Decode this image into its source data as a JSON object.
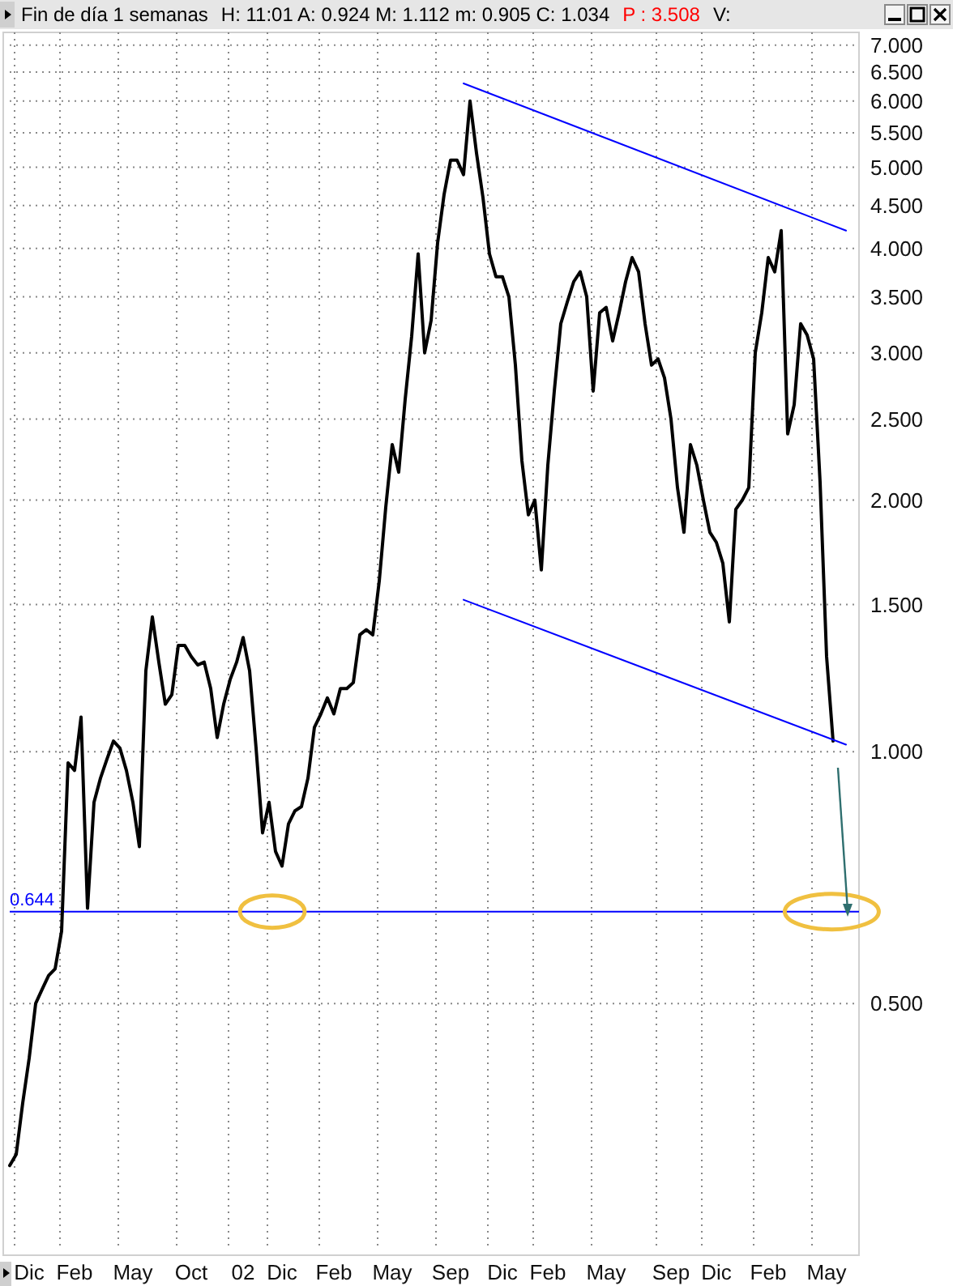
{
  "chart_data": {
    "type": "line",
    "title": "Fin de día 1 semanas",
    "annotations": [
      "H: 11:01  A: 0.924  M: 1.112  m: 0.905  C: 1.034",
      "P : 3.508",
      "V:"
    ],
    "categories": [
      null,
      null,
      null,
      "Dic",
      null,
      null,
      null,
      null,
      null,
      null,
      "Feb",
      null,
      null,
      null,
      null,
      null,
      null,
      null,
      null,
      "May",
      null,
      null,
      null,
      null,
      null,
      null,
      null,
      null,
      "Oct",
      null,
      null,
      null,
      null,
      null,
      null,
      null,
      "02",
      null,
      null,
      null,
      null,
      null,
      "Dic",
      null,
      null,
      null,
      null,
      null,
      null,
      null,
      "Feb",
      null,
      null,
      null,
      null,
      null,
      null,
      null,
      null,
      "May",
      null,
      null,
      null,
      null,
      null,
      null,
      null,
      null,
      "Sep",
      null,
      null,
      null,
      null,
      null,
      null,
      null,
      "Dic",
      null,
      null,
      null,
      null,
      null,
      null,
      "Feb",
      null,
      null,
      null,
      null,
      null,
      null,
      null,
      null,
      "May",
      null,
      null,
      null,
      null,
      null,
      null,
      null,
      null,
      null,
      "Sep",
      null,
      null,
      null,
      null,
      null,
      null,
      "Dic",
      null,
      null,
      null,
      null,
      null,
      null,
      null,
      "Feb",
      null,
      null,
      null,
      null,
      null,
      null,
      null,
      null,
      "May",
      null,
      null,
      null
    ],
    "series": [
      {
        "color": "#000000",
        "values": [
          0.32,
          0.33,
          0.38,
          0.43,
          0.5,
          0.52,
          0.54,
          0.55,
          0.61,
          0.97,
          0.95,
          1.1,
          0.65,
          0.87,
          0.93,
          0.98,
          1.03,
          1.01,
          0.95,
          0.87,
          0.77,
          1.25,
          1.45,
          1.28,
          1.14,
          1.17,
          1.34,
          1.34,
          1.3,
          1.27,
          1.28,
          1.19,
          1.04,
          1.14,
          1.22,
          1.28,
          1.37,
          1.25,
          1.01,
          0.8,
          0.87,
          0.76,
          0.73,
          0.82,
          0.85,
          0.86,
          0.93,
          1.07,
          1.11,
          1.16,
          1.11,
          1.19,
          1.19,
          1.21,
          1.38,
          1.4,
          1.38,
          1.6,
          1.96,
          2.33,
          2.16,
          2.64,
          3.14,
          3.94,
          3.0,
          3.28,
          4.06,
          4.64,
          5.1,
          5.1,
          4.9,
          6.0,
          5.2,
          4.6,
          3.94,
          3.7,
          3.7,
          3.5,
          2.9,
          2.23,
          1.92,
          2.0,
          1.65,
          2.2,
          2.7,
          3.25,
          3.45,
          3.65,
          3.75,
          3.5,
          2.7,
          3.35,
          3.4,
          3.1,
          3.35,
          3.65,
          3.9,
          3.75,
          3.25,
          2.9,
          2.95,
          2.8,
          2.5,
          2.07,
          1.83,
          2.33,
          2.2,
          2.0,
          1.83,
          1.78,
          1.68,
          1.43,
          1.95,
          2.0,
          2.07,
          3.0,
          3.35,
          3.9,
          3.75,
          4.2,
          2.4,
          2.6,
          3.25,
          3.15,
          2.95,
          2.1,
          1.3,
          1.03,
          null,
          null
        ]
      },
      {
        "color": "#0000ff",
        "values": [
          null,
          null,
          null,
          null,
          null,
          null,
          null,
          null,
          null,
          null,
          null,
          null,
          null,
          null,
          null,
          null,
          null,
          null,
          null,
          null,
          null,
          null,
          null,
          null,
          null,
          null,
          null,
          null,
          null,
          null,
          null,
          null,
          null,
          null,
          null,
          null,
          null,
          null,
          null,
          null,
          null,
          null,
          null,
          null,
          null,
          null,
          null,
          null,
          null,
          null,
          null,
          null,
          null,
          null,
          null,
          null,
          null,
          null,
          null,
          null,
          null,
          null,
          null,
          null,
          null,
          null,
          null,
          null,
          null,
          null,
          6.3,
          null,
          null,
          null,
          null,
          null,
          null,
          null,
          null,
          null,
          null,
          null,
          null,
          null,
          null,
          null,
          null,
          null,
          null,
          null,
          null,
          null,
          null,
          null,
          null,
          null,
          null,
          null,
          null,
          null,
          null,
          null,
          null,
          null,
          null,
          null,
          null,
          null,
          null,
          null,
          null,
          null,
          null,
          null,
          null,
          null,
          null,
          null,
          null,
          null,
          null,
          null,
          null,
          null,
          null,
          null,
          null,
          null,
          null,
          4.2
        ]
      },
      {
        "color": "#0000ff",
        "values": [
          null,
          null,
          null,
          null,
          null,
          null,
          null,
          null,
          null,
          null,
          null,
          null,
          null,
          null,
          null,
          null,
          null,
          null,
          null,
          null,
          null,
          null,
          null,
          null,
          null,
          null,
          null,
          null,
          null,
          null,
          null,
          null,
          null,
          null,
          null,
          null,
          null,
          null,
          null,
          null,
          null,
          null,
          null,
          null,
          null,
          null,
          null,
          null,
          null,
          null,
          null,
          null,
          null,
          null,
          null,
          null,
          null,
          null,
          null,
          null,
          null,
          null,
          null,
          null,
          null,
          null,
          null,
          null,
          null,
          null,
          1.52,
          null,
          null,
          null,
          null,
          null,
          null,
          null,
          null,
          null,
          null,
          null,
          null,
          null,
          null,
          null,
          null,
          null,
          null,
          null,
          null,
          null,
          null,
          null,
          null,
          null,
          null,
          null,
          null,
          null,
          null,
          null,
          null,
          null,
          null,
          null,
          null,
          null,
          null,
          null,
          null,
          null,
          null,
          null,
          null,
          null,
          null,
          null,
          null,
          null,
          null,
          null,
          null,
          null,
          null,
          null,
          null,
          null,
          null,
          1.02
        ]
      }
    ],
    "log": "y",
    "ylim": [
      0.25,
      7.25
    ],
    "yticks": [
      {
        "value": 0.5,
        "label": "0.500"
      },
      {
        "value": 1,
        "label": "1.000"
      },
      {
        "value": 1.5,
        "label": "1.500"
      },
      {
        "value": 2,
        "label": "2.000"
      },
      {
        "value": 2.5,
        "label": "2.500"
      },
      {
        "value": 3,
        "label": "3.000"
      },
      {
        "value": 3.5,
        "label": "3.500"
      },
      {
        "value": 4,
        "label": "4.000"
      },
      {
        "value": 4.5,
        "label": "4.500"
      },
      {
        "value": 5,
        "label": "5.000"
      },
      {
        "value": 5.5,
        "label": "5.500"
      },
      {
        "value": 6,
        "label": "6.000"
      },
      {
        "value": 6.5,
        "label": "6.500"
      },
      {
        "value": 7,
        "label": "7.000"
      }
    ],
    "grid": true,
    "ref_lines": [
      {
        "axis": "y",
        "value": 0.644,
        "label": "0.644",
        "color": "#0000ff"
      }
    ]
  }
}
